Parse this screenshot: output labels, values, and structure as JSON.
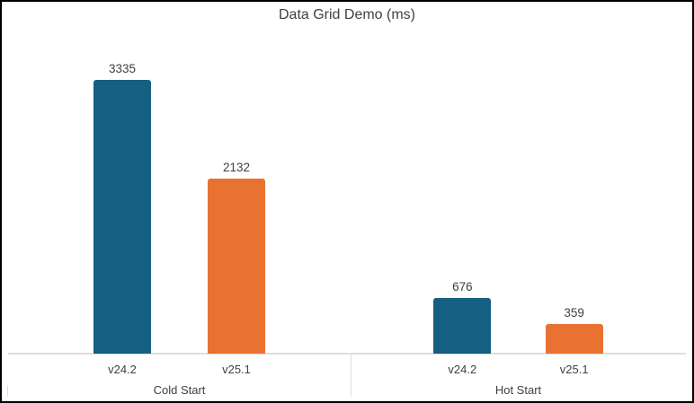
{
  "chart_data": {
    "type": "bar",
    "title": "Data Grid Demo (ms)",
    "ylim": [
      0,
      3335
    ],
    "grid": false,
    "legend_position": "none",
    "data_labels": true,
    "groups": [
      {
        "label": "Cold Start",
        "bars": [
          {
            "category": "v24.2",
            "value": 3335,
            "color": "#156082"
          },
          {
            "category": "v25.1",
            "value": 2132,
            "color": "#E97132"
          }
        ]
      },
      {
        "label": "Hot Start",
        "bars": [
          {
            "category": "v24.2",
            "value": 676,
            "color": "#156082"
          },
          {
            "category": "v25.1",
            "value": 359,
            "color": "#E97132"
          }
        ]
      }
    ],
    "series_colors": {
      "v24.2": "#156082",
      "v25.1": "#E97132"
    },
    "text_color": "#404040",
    "axis_line_color": "#DEDEDE"
  }
}
